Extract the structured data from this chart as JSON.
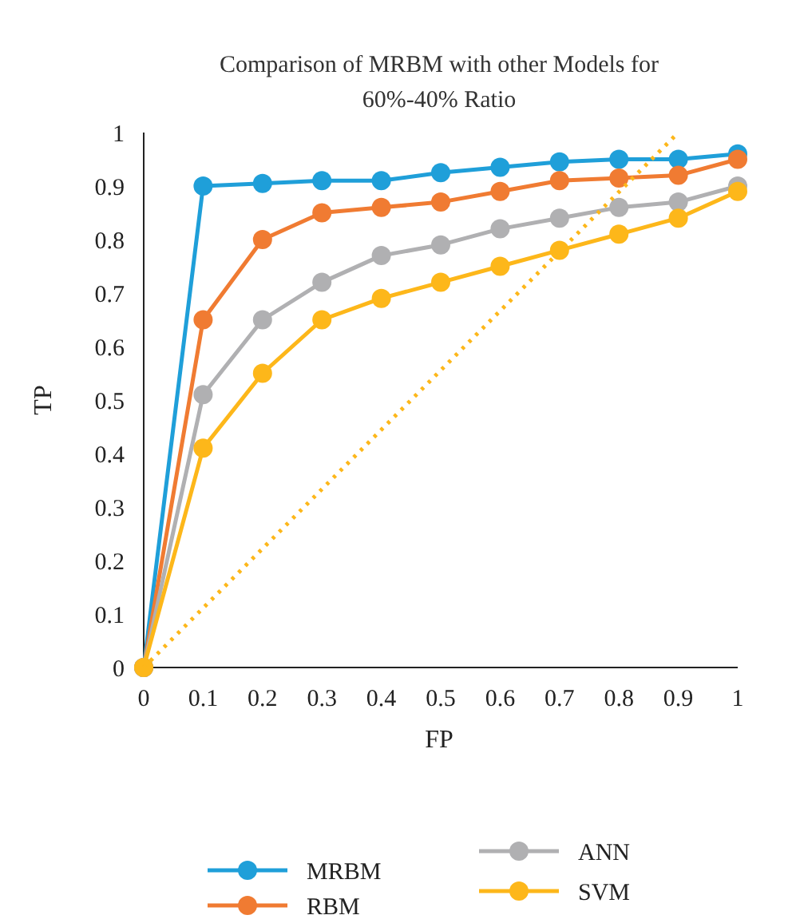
{
  "chart_data": {
    "type": "line",
    "title": "Comparison of MRBM with other Models for 60%-40% Ratio",
    "xlabel": "FP",
    "ylabel": "TP",
    "x": [
      0,
      0.1,
      0.2,
      0.3,
      0.4,
      0.5,
      0.6,
      0.7,
      0.8,
      0.9,
      1
    ],
    "xlim": [
      0,
      1
    ],
    "xticks": [
      0,
      0.1,
      0.2,
      0.3,
      0.4,
      0.5,
      0.6,
      0.7,
      0.8,
      0.9,
      1
    ],
    "ylim": [
      0,
      1
    ],
    "yticks": [
      0,
      0.1,
      0.2,
      0.3,
      0.4,
      0.5,
      0.6,
      0.7,
      0.8,
      0.9,
      1
    ],
    "grid": false,
    "legend": "bottom",
    "marker": "circle",
    "line_style": "solid",
    "series": [
      {
        "name": "MRBM",
        "color": "#1f9fd9",
        "values": [
          0,
          0.9,
          0.905,
          0.91,
          0.91,
          0.925,
          0.935,
          0.945,
          0.95,
          0.95,
          0.96
        ]
      },
      {
        "name": "RBM",
        "color": "#f07b32",
        "values": [
          0,
          0.65,
          0.8,
          0.85,
          0.86,
          0.87,
          0.89,
          0.91,
          0.915,
          0.92,
          0.95
        ]
      },
      {
        "name": "ANN",
        "color": "#b0b0b2",
        "values": [
          0,
          0.51,
          0.65,
          0.72,
          0.77,
          0.79,
          0.82,
          0.84,
          0.86,
          0.87,
          0.9
        ]
      },
      {
        "name": "SVM",
        "color": "#fdb71a",
        "values": [
          0,
          0.41,
          0.55,
          0.65,
          0.69,
          0.72,
          0.75,
          0.78,
          0.81,
          0.84,
          0.89
        ]
      },
      {
        "type": "line",
        "color": "#fdb71a",
        "x": [
          0,
          0.9
        ],
        "values": [
          0,
          1
        ],
        "marker": "none",
        "line_style": "dotted"
      }
    ]
  }
}
